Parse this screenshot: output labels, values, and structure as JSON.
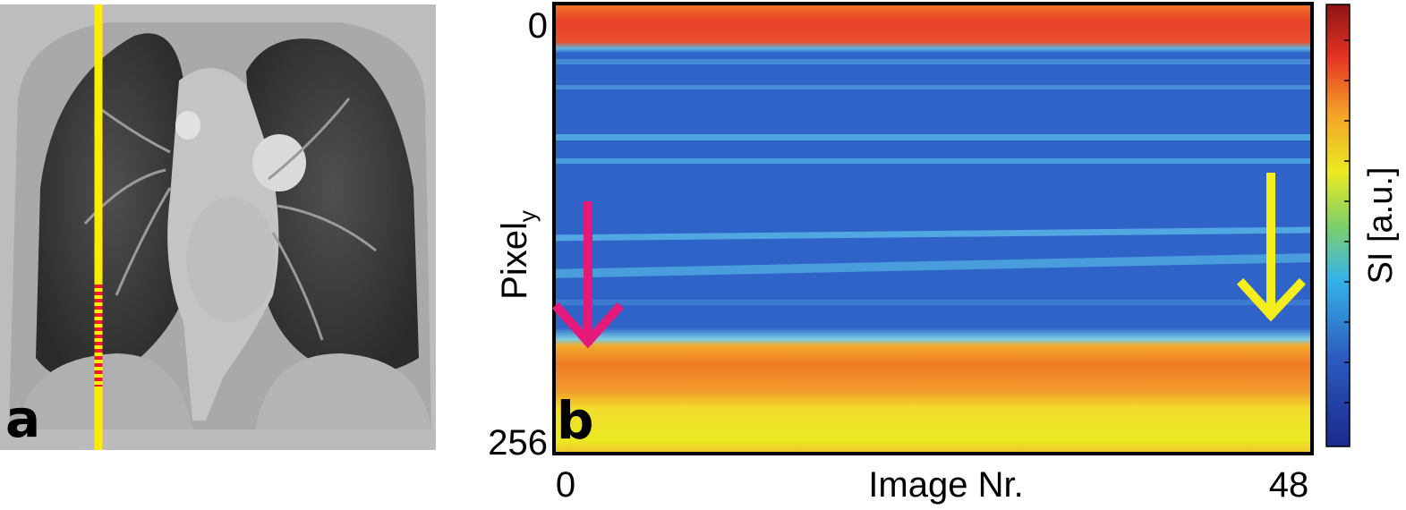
{
  "panel_a": {
    "label": "a",
    "image": "coronal-lung-mri",
    "profile_line_color": "#ffea00",
    "profile_segment_color": "#e8202a"
  },
  "panel_b": {
    "label": "b",
    "y_axis_label": "Pixel",
    "y_axis_subscript": "y",
    "y_tick_top": "0",
    "y_tick_bottom": "256",
    "x_axis_label": "Image Nr.",
    "x_tick_left": "0",
    "x_tick_right": "48",
    "left_arrow_color": "#e5197a",
    "right_arrow_color": "#f5ee1c",
    "colorbar_label": "SI [a.u.]",
    "colormap": "jet"
  }
}
